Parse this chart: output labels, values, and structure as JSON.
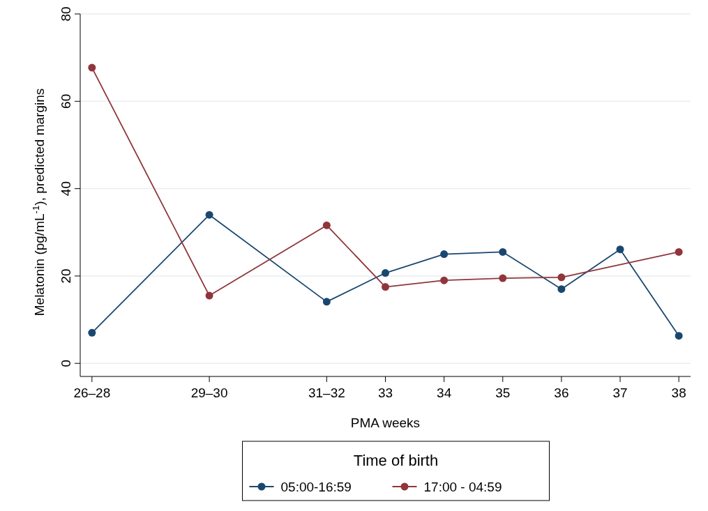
{
  "chart_data": {
    "type": "line",
    "xlabel": "PMA weeks",
    "ylabel": "Melatonin (pg/mL$^{-1}$), predicted margins",
    "legend_title": "Time of birth",
    "xlim": [
      27.8,
      38.2
    ],
    "xticks": [
      {
        "value": 28,
        "label": "26–28"
      },
      {
        "value": 30,
        "label": "29–30"
      },
      {
        "value": 32,
        "label": "31–32"
      },
      33,
      34,
      35,
      36,
      37,
      38
    ],
    "ylim": [
      -3,
      80
    ],
    "yticks": [
      0,
      20,
      40,
      60,
      80
    ],
    "grid": "y",
    "legend": "bottom",
    "marker": "circle",
    "line_style": "solid",
    "series": [
      {
        "name": "05:00-16:59",
        "color": "#1a476f",
        "x": [
          28,
          30,
          32,
          33,
          34,
          35,
          36,
          37,
          38
        ],
        "values": [
          7,
          34,
          14.1,
          20.7,
          25,
          25.5,
          17,
          26.1,
          6.3
        ]
      },
      {
        "name": "17:00 - 04:59",
        "color": "#90353b",
        "x": [
          28,
          30,
          32,
          33,
          34,
          35,
          36,
          38
        ],
        "values": [
          67.7,
          15.5,
          31.6,
          17.5,
          19,
          19.5,
          19.7,
          25.5
        ]
      }
    ]
  }
}
